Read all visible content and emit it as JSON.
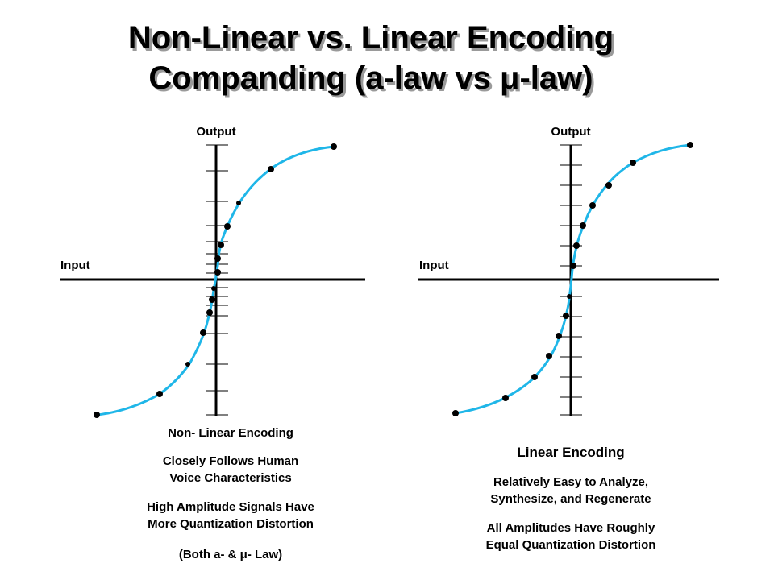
{
  "title": {
    "lines": [
      "Non-Linear vs. Linear Encoding",
      "Companding (a-law vs μ-law)"
    ]
  },
  "panels": [
    {
      "output_label": "Output",
      "input_label": "Input",
      "heading": "Non- Linear Encoding",
      "notes": [
        "Closely Follows Human",
        "Voice Characteristics",
        "High Amplitude Signals Have",
        "More Quantization Distortion",
        "(Both a- & μ- Law)"
      ]
    },
    {
      "output_label": "Output",
      "input_label": "Input",
      "heading": "Linear Encoding",
      "notes": [
        "Relatively Easy to Analyze,",
        "Synthesize, and Regenerate",
        "All Amplitudes Have Roughly",
        "Equal Quantization Distortion"
      ]
    }
  ]
}
